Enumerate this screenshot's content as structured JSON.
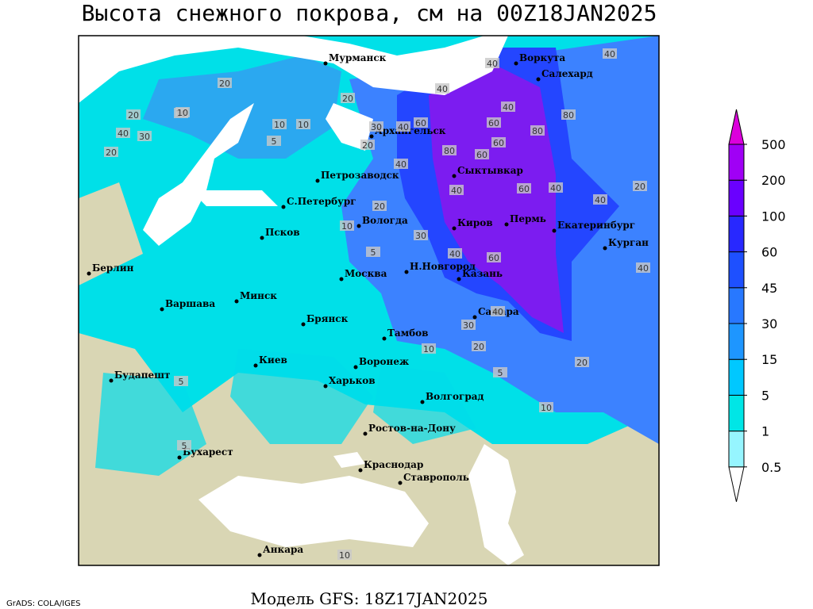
{
  "header": {
    "title": "Высота снежного покрова, см на 00Z18JAN2025"
  },
  "footer": {
    "model": "Модель GFS: 18Z17JAN2025",
    "credit": "GrADS: COLA/IGES"
  },
  "legend": {
    "levels": [
      0.5,
      1,
      5,
      15,
      30,
      45,
      60,
      100,
      200,
      500
    ],
    "colors": [
      "#ffffff",
      "#96f5ff",
      "#00e6e6",
      "#00c8ff",
      "#1e96ff",
      "#2878ff",
      "#1e50ff",
      "#2828ff",
      "#6a00ff",
      "#a000f5",
      "#dc00dc"
    ]
  },
  "cities": [
    "Мурманск",
    "Воркута",
    "Салехард",
    "Архангельск",
    "Сыктывкар",
    "Петрозаводск",
    "С.Петербург",
    "Вологда",
    "Киров",
    "Пермь",
    "Екатеринбург",
    "Курган",
    "Псков",
    "Берлин",
    "Минск",
    "Москва",
    "Н.Новгород",
    "Казань",
    "Варшава",
    "Брянск",
    "Тамбов",
    "Самара",
    "Киев",
    "Воронеж",
    "Будапешт",
    "Харьков",
    "Волгоград",
    "Ростов-на-Дону",
    "Бухарест",
    "Краснодар",
    "Ставрополь",
    "Анкара"
  ],
  "contour_labels": [
    20,
    40,
    20,
    10,
    20,
    40,
    30,
    10,
    10,
    5,
    20,
    30,
    40,
    40,
    60,
    40,
    60,
    80,
    40,
    40,
    60,
    40,
    40,
    80,
    80,
    60,
    30,
    40,
    20,
    10,
    5,
    40,
    20,
    30,
    40,
    60,
    10,
    20,
    5,
    20,
    10,
    5,
    5,
    10,
    40,
    20,
    10,
    60
  ]
}
